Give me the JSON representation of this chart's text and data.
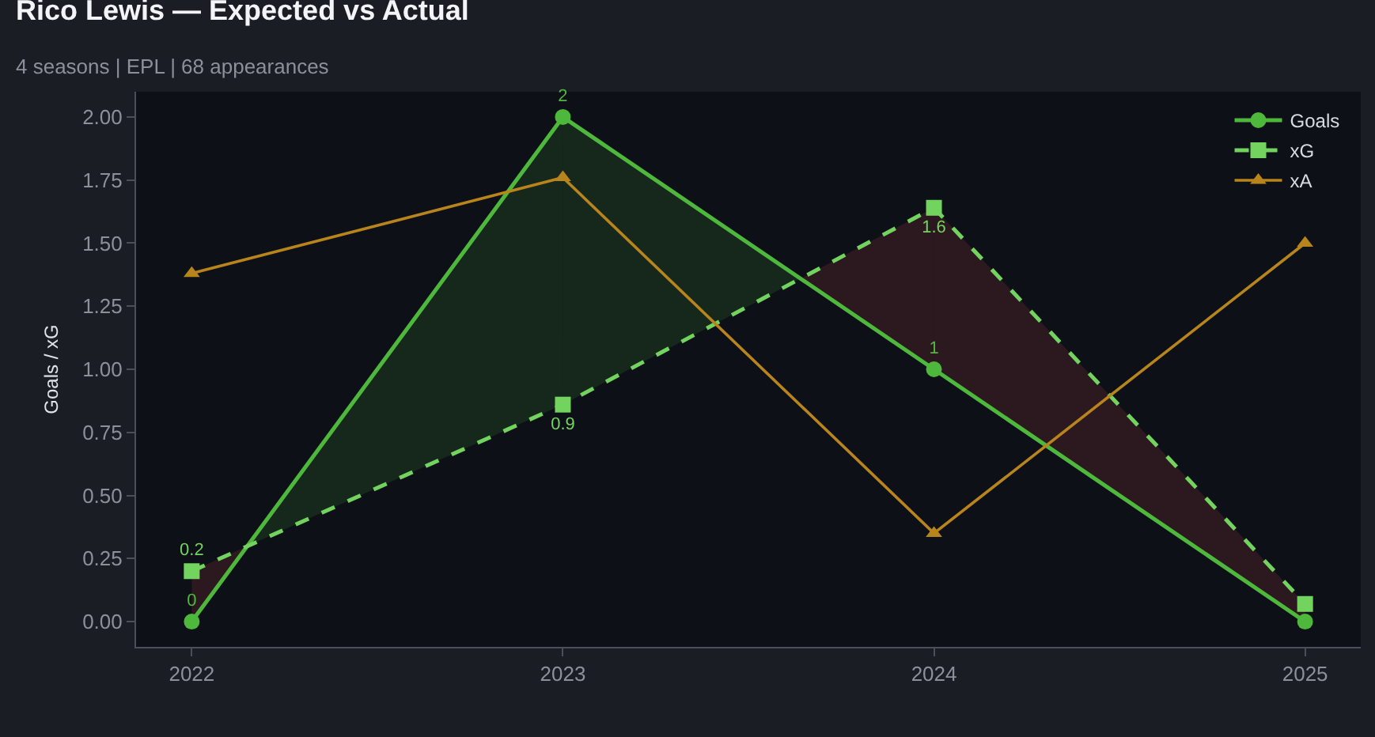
{
  "chart_data": {
    "type": "line",
    "title": "Rico Lewis — Expected vs Actual",
    "subtitle": "4 seasons | EPL | 68 appearances",
    "ylabel": "Goals / xG",
    "categories": [
      "2022",
      "2023",
      "2024",
      "2025"
    ],
    "series": [
      {
        "name": "Goals",
        "color": "#4db83c",
        "values": [
          0,
          2,
          1,
          0
        ],
        "marker": "circle",
        "line_style": "solid",
        "value_labels": [
          "0",
          "2",
          "1",
          null
        ]
      },
      {
        "name": "xG",
        "color": "#72d35e",
        "values": [
          0.2,
          0.86,
          1.64,
          0.07
        ],
        "marker": "square",
        "line_style": "dashed",
        "value_labels": [
          "0.2",
          "0.9",
          "1.6",
          null
        ]
      },
      {
        "name": "xA",
        "color": "#b8841c",
        "values": [
          1.38,
          1.76,
          0.35,
          1.5
        ],
        "marker": "triangle",
        "line_style": "solid"
      }
    ],
    "ylim": [
      -0.1,
      2.1
    ],
    "yticks": [
      {
        "value": 0,
        "label": "0.00"
      },
      {
        "value": 0.25,
        "label": "0.25"
      },
      {
        "value": 0.5,
        "label": "0.50"
      },
      {
        "value": 0.75,
        "label": "0.75"
      },
      {
        "value": 1,
        "label": "1.00"
      },
      {
        "value": 1.25,
        "label": "1.25"
      },
      {
        "value": 1.5,
        "label": "1.50"
      },
      {
        "value": 1.75,
        "label": "1.75"
      },
      {
        "value": 2,
        "label": "2.00"
      }
    ],
    "grid": false,
    "legend": "top right"
  }
}
